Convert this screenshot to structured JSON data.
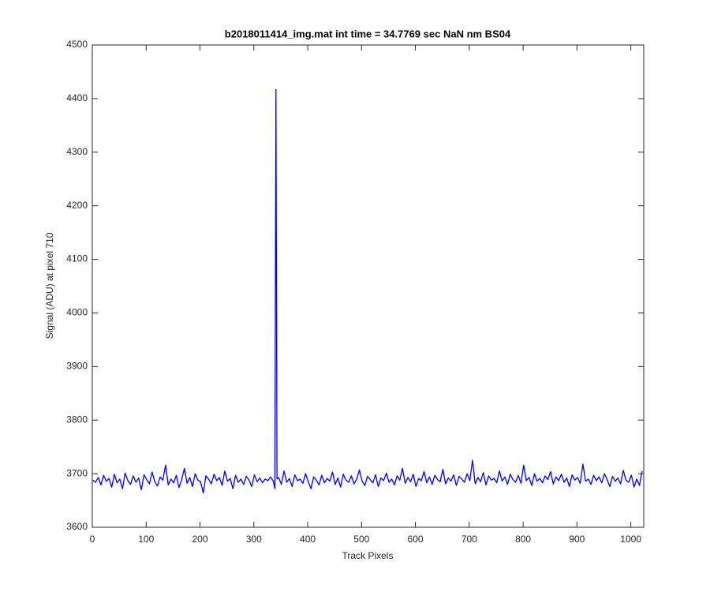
{
  "chart_data": {
    "type": "line",
    "title": "b2018011414_img.mat int time = 34.7769 sec  NaN nm BS04",
    "x_label": "Track Pixels",
    "y_label": "Signal (ADU) at pixel 710",
    "color": "#0000ff",
    "xlim": [
      0,
      1024
    ],
    "ylim": [
      3600,
      4500
    ],
    "xticks": [
      0,
      100,
      200,
      300,
      400,
      500,
      600,
      700,
      800,
      900,
      1000
    ],
    "yticks": [
      3600,
      3700,
      3800,
      3900,
      4000,
      4100,
      4200,
      4300,
      4400,
      4500
    ],
    "grid": false,
    "x": [
      1,
      6,
      11,
      16,
      21,
      26,
      31,
      36,
      41,
      46,
      51,
      56,
      61,
      66,
      71,
      76,
      81,
      86,
      91,
      96,
      101,
      106,
      111,
      116,
      121,
      126,
      131,
      136,
      141,
      146,
      151,
      156,
      161,
      166,
      171,
      176,
      181,
      186,
      191,
      196,
      201,
      206,
      211,
      216,
      221,
      226,
      231,
      236,
      241,
      246,
      251,
      256,
      261,
      266,
      271,
      276,
      281,
      286,
      291,
      296,
      301,
      306,
      311,
      316,
      321,
      326,
      331,
      336,
      339,
      341,
      343,
      346,
      351,
      356,
      361,
      366,
      371,
      376,
      381,
      386,
      391,
      396,
      401,
      406,
      411,
      416,
      421,
      426,
      431,
      436,
      441,
      446,
      451,
      456,
      461,
      466,
      471,
      476,
      481,
      486,
      491,
      496,
      501,
      506,
      511,
      516,
      521,
      526,
      531,
      536,
      541,
      546,
      551,
      556,
      561,
      566,
      571,
      576,
      581,
      586,
      591,
      596,
      601,
      606,
      611,
      616,
      621,
      626,
      631,
      636,
      641,
      646,
      651,
      656,
      661,
      666,
      671,
      676,
      681,
      686,
      691,
      696,
      701,
      706,
      711,
      716,
      721,
      726,
      731,
      736,
      741,
      746,
      751,
      756,
      761,
      766,
      771,
      776,
      781,
      786,
      791,
      796,
      801,
      806,
      811,
      816,
      821,
      826,
      831,
      836,
      841,
      846,
      851,
      856,
      861,
      866,
      871,
      876,
      881,
      886,
      891,
      896,
      901,
      906,
      911,
      916,
      921,
      926,
      931,
      936,
      941,
      946,
      951,
      956,
      961,
      966,
      971,
      976,
      981,
      986,
      991,
      996,
      1001,
      1006,
      1011,
      1016,
      1021
    ],
    "values": [
      3688,
      3684,
      3693,
      3679,
      3697,
      3686,
      3691,
      3675,
      3699,
      3683,
      3690,
      3672,
      3701,
      3687,
      3680,
      3696,
      3684,
      3692,
      3670,
      3698,
      3689,
      3681,
      3703,
      3685,
      3677,
      3694,
      3688,
      3716,
      3679,
      3690,
      3683,
      3697,
      3674,
      3689,
      3710,
      3682,
      3693,
      3676,
      3700,
      3688,
      3685,
      3664,
      3696,
      3690,
      3681,
      3699,
      3687,
      3693,
      3678,
      3705,
      3686,
      3691,
      3672,
      3697,
      3684,
      3690,
      3680,
      3695,
      3688,
      3676,
      3698,
      3685,
      3692,
      3683,
      3690,
      3687,
      3694,
      3686,
      3672,
      4417,
      3690,
      3693,
      3680,
      3705,
      3684,
      3691,
      3676,
      3698,
      3687,
      3690,
      3682,
      3700,
      3685,
      3672,
      3694,
      3688,
      3679,
      3697,
      3683,
      3691,
      3686,
      3703,
      3680,
      3692,
      3675,
      3699,
      3688,
      3684,
      3696,
      3681,
      3690,
      3707,
      3686,
      3678,
      3695,
      3689,
      3683,
      3698,
      3676,
      3692,
      3687,
      3701,
      3684,
      3690,
      3679,
      3696,
      3688,
      3710,
      3682,
      3693,
      3685,
      3699,
      3676,
      3691,
      3687,
      3704,
      3683,
      3694,
      3680,
      3697,
      3689,
      3685,
      3708,
      3681,
      3692,
      3686,
      3698,
      3678,
      3695,
      3690,
      3684,
      3700,
      3687,
      3725,
      3681,
      3693,
      3685,
      3702,
      3679,
      3696,
      3688,
      3691,
      3683,
      3705,
      3686,
      3694,
      3680,
      3699,
      3689,
      3684,
      3697,
      3682,
      3716,
      3687,
      3693,
      3678,
      3700,
      3686,
      3691,
      3683,
      3696,
      3689,
      3704,
      3681,
      3694,
      3687,
      3699,
      3684,
      3692,
      3676,
      3698,
      3688,
      3693,
      3682,
      3718,
      3686,
      3690,
      3680,
      3697,
      3687,
      3694,
      3683,
      3700,
      3689,
      3676,
      3695,
      3686,
      3692,
      3681,
      3706,
      3688,
      3684,
      3697,
      3675,
      3690,
      3678,
      3705
    ]
  }
}
